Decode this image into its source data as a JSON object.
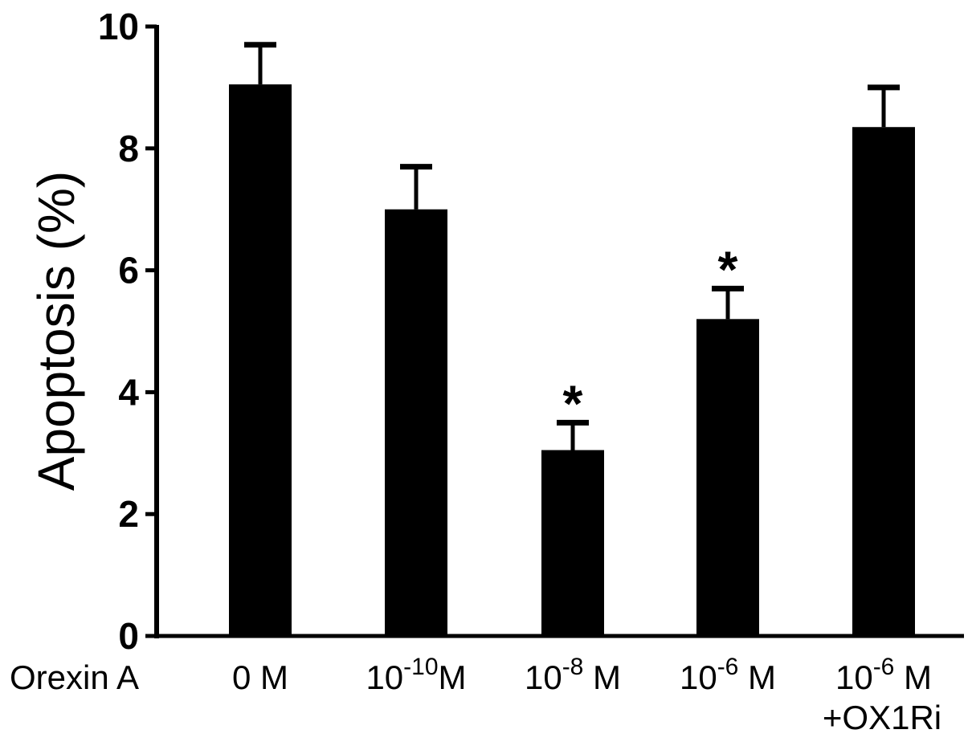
{
  "chart_data": {
    "type": "bar",
    "ylabel": "Apoptosis (%)",
    "ylim": [
      0,
      10
    ],
    "yticks": [
      "0",
      "2",
      "4",
      "6",
      "8",
      "10"
    ],
    "x_prefix_label": "Orexin A",
    "categories": [
      {
        "base": "0 M",
        "exponent": "",
        "unit": "",
        "second_line": ""
      },
      {
        "base": "10",
        "exponent": "-10",
        "unit": "M",
        "second_line": ""
      },
      {
        "base": "10",
        "exponent": "-8",
        "unit": " M",
        "second_line": ""
      },
      {
        "base": "10",
        "exponent": "-6",
        "unit": " M",
        "second_line": ""
      },
      {
        "base": "10",
        "exponent": "-6",
        "unit": " M",
        "second_line": "+OX1Ri"
      }
    ],
    "values": [
      9.05,
      7.0,
      3.05,
      5.2,
      8.35
    ],
    "errors": [
      0.65,
      0.7,
      0.45,
      0.5,
      0.65
    ],
    "significance": [
      "",
      "",
      "*",
      "*",
      ""
    ],
    "colors": {
      "bar": "#000000",
      "axis": "#000000"
    }
  }
}
